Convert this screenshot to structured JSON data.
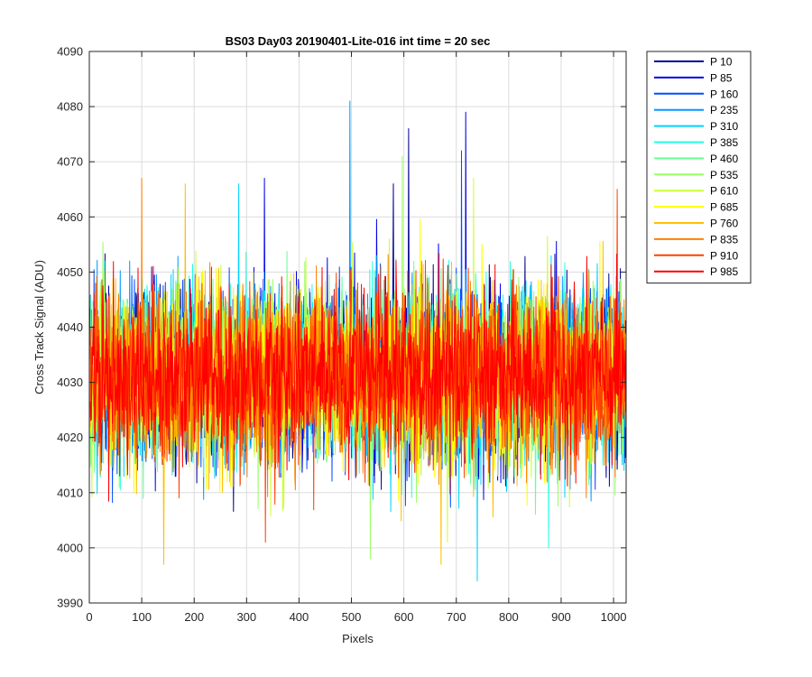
{
  "chart_data": {
    "type": "line",
    "title": "BS03 Day03 20190401-Lite-016 int time = 20 sec",
    "xlabel": "Pixels",
    "ylabel": "Cross Track Signal (ADU)",
    "xlim": [
      0,
      1024
    ],
    "ylim": [
      3990,
      4090
    ],
    "xticks": [
      0,
      100,
      200,
      300,
      400,
      500,
      600,
      700,
      800,
      900,
      1000
    ],
    "yticks": [
      3990,
      4000,
      4010,
      4020,
      4030,
      4040,
      4050,
      4060,
      4070,
      4080,
      4090
    ],
    "grid": true,
    "legend_position": "outside-top-right",
    "pixel_range": [
      1,
      1024
    ],
    "series": [
      {
        "name": "P 10",
        "color": "#00008f",
        "mean": 4031,
        "spread": 7.5,
        "range": [
          4001,
          4076
        ],
        "peaks": [
          [
            609,
            4076
          ],
          [
            580,
            4066
          ]
        ]
      },
      {
        "name": "P 85",
        "color": "#0000e6",
        "mean": 4031,
        "spread": 7.5,
        "range": [
          4004,
          4079
        ],
        "peaks": [
          [
            718,
            4079
          ],
          [
            334,
            4067
          ]
        ]
      },
      {
        "name": "P 160",
        "color": "#004cff",
        "mean": 4031,
        "spread": 7.5,
        "range": [
          4003,
          4072
        ],
        "peaks": [
          [
            710,
            4072
          ]
        ]
      },
      {
        "name": "P 235",
        "color": "#0099ff",
        "mean": 4031,
        "spread": 7.5,
        "range": [
          4002,
          4081
        ],
        "peaks": [
          [
            497,
            4081
          ]
        ]
      },
      {
        "name": "P 310",
        "color": "#00d4ff",
        "mean": 4031,
        "spread": 7.5,
        "range": [
          3994,
          4066
        ],
        "peaks": [
          [
            740,
            3994
          ],
          [
            285,
            4066
          ]
        ]
      },
      {
        "name": "P 385",
        "color": "#1fffe0",
        "mean": 4031,
        "spread": 7.5,
        "range": [
          4000,
          4064
        ],
        "peaks": [
          [
            876,
            4000
          ]
        ]
      },
      {
        "name": "P 460",
        "color": "#66ff99",
        "mean": 4031,
        "spread": 7.5,
        "range": [
          4001,
          4063
        ],
        "peaks": []
      },
      {
        "name": "P 535",
        "color": "#99ff66",
        "mean": 4031,
        "spread": 7.5,
        "range": [
          3998,
          4071
        ],
        "peaks": [
          [
            597,
            4071
          ],
          [
            536,
            3998
          ]
        ]
      },
      {
        "name": "P 610",
        "color": "#ccff33",
        "mean": 4031,
        "spread": 7.5,
        "range": [
          4001,
          4067
        ],
        "peaks": [
          [
            733,
            4067
          ],
          [
            683,
            4001
          ]
        ]
      },
      {
        "name": "P 685",
        "color": "#ffff00",
        "mean": 4031,
        "spread": 7.5,
        "range": [
          4003,
          4064
        ],
        "peaks": []
      },
      {
        "name": "P 760",
        "color": "#ffbf00",
        "mean": 4031,
        "spread": 7.5,
        "range": [
          3997,
          4066
        ],
        "peaks": [
          [
            142,
            3997
          ],
          [
            671,
            3997
          ],
          [
            183,
            4066
          ]
        ]
      },
      {
        "name": "P 835",
        "color": "#ff8000",
        "mean": 4031,
        "spread": 7.5,
        "range": [
          4004,
          4067
        ],
        "peaks": [
          [
            100,
            4067
          ]
        ]
      },
      {
        "name": "P 910",
        "color": "#ff4000",
        "mean": 4031,
        "spread": 7.5,
        "range": [
          4001,
          4065
        ],
        "peaks": [
          [
            1007,
            4065
          ],
          [
            336,
            4001
          ]
        ]
      },
      {
        "name": "P 985",
        "color": "#ff0000",
        "mean": 4031,
        "spread": 7.5,
        "range": [
          4003,
          4063
        ],
        "peaks": []
      }
    ]
  }
}
